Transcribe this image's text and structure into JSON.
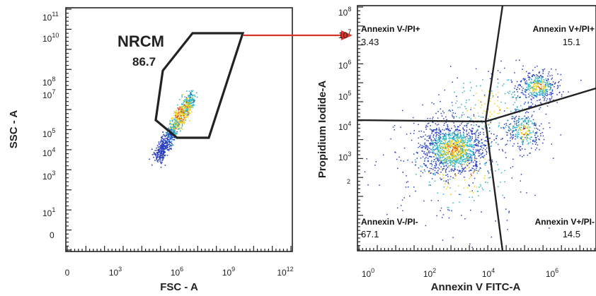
{
  "chart_data": [
    {
      "type": "scatter",
      "title": "",
      "xlabel": "FSC - A",
      "ylabel": "SSC - A",
      "x_ticks": [
        {
          "base": "0",
          "exp": ""
        },
        {
          "base": "10",
          "exp": "3"
        },
        {
          "base": "10",
          "exp": "6"
        },
        {
          "base": "10",
          "exp": "9"
        },
        {
          "base": "10",
          "exp": "12"
        }
      ],
      "y_ticks": [
        {
          "base": "10",
          "exp": "11"
        },
        {
          "base": "10",
          "exp": "10"
        },
        {
          "base": "10",
          "exp": "8"
        },
        {
          "base": "10",
          "exp": "7"
        },
        {
          "base": "10",
          "exp": "5"
        },
        {
          "base": "10",
          "exp": "4"
        },
        {
          "base": "10",
          "exp": "3"
        },
        {
          "base": "10",
          "exp": "1"
        },
        {
          "base": "0",
          "exp": ""
        }
      ],
      "gate": {
        "name": "NRCM",
        "value": "86.7"
      },
      "population": {
        "x_center_log": 5.6,
        "y_center_log": 5.0,
        "spread": "diagonal"
      }
    },
    {
      "type": "scatter",
      "title": "",
      "xlabel": "Annexin V FITC-A",
      "ylabel": "Propidium Iodide-A",
      "x_ticks": [
        {
          "base": "10",
          "exp": "0"
        },
        {
          "base": "10",
          "exp": "2"
        },
        {
          "base": "10",
          "exp": "4"
        },
        {
          "base": "10",
          "exp": "6"
        }
      ],
      "y_ticks": [
        {
          "base": "10",
          "exp": "8"
        },
        {
          "base": "10",
          "exp": "7"
        },
        {
          "base": "10",
          "exp": "6"
        },
        {
          "base": "10",
          "exp": "5"
        },
        {
          "base": "10",
          "exp": "4"
        },
        {
          "base": "10",
          "exp": "3"
        },
        {
          "base": "",
          "exp": "2"
        }
      ],
      "quadrants": [
        {
          "label": "Annexin V-/PI+",
          "value": "3.43",
          "position": "top-left"
        },
        {
          "label": "Annexin V+/PI+",
          "value": "15.1",
          "position": "top-right"
        },
        {
          "label": "Annexin V-/PI-",
          "value": "67.1",
          "position": "bottom-left"
        },
        {
          "label": "Annexin V+/PI-",
          "value": "14.5",
          "position": "bottom-right"
        }
      ]
    }
  ],
  "colors": {
    "gate_line": "#222222",
    "arrow": "#d9342b",
    "density_low": "#2a3fbf",
    "density_mid": "#2fb6c4",
    "density_high": "#f2d21b",
    "density_peak": "#e03a1e"
  }
}
